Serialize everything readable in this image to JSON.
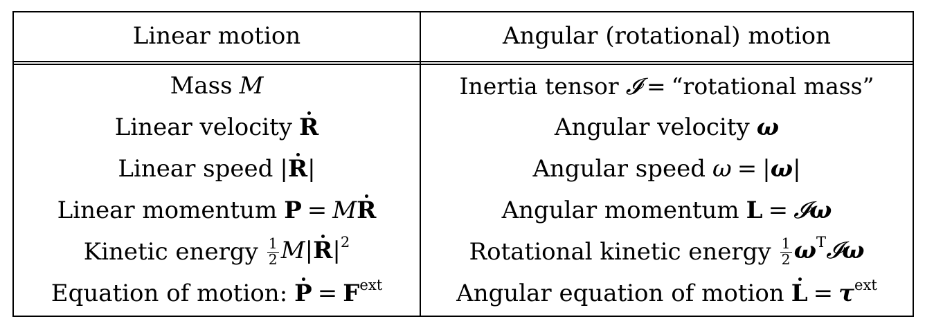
{
  "table": {
    "headers": {
      "linear": "Linear motion",
      "angular": "Angular (rotational) motion"
    },
    "rows": [
      {
        "linear": {
          "label": "Mass",
          "symbol": "M"
        },
        "angular": {
          "label": "Inertia tensor",
          "symbol": "𝓘",
          "equals": "=",
          "rhs": "“rotational mass”"
        }
      },
      {
        "linear": {
          "label": "Linear velocity",
          "symbol": "R"
        },
        "angular": {
          "label": "Angular velocity",
          "symbol": "ω"
        }
      },
      {
        "linear": {
          "label": "Linear speed",
          "bar_left": "|",
          "symbol": "R",
          "bar_right": "|"
        },
        "angular": {
          "label": "Angular speed",
          "symbol": "ω",
          "equals": "=",
          "bar_left": "|",
          "rhs_symbol": "ω",
          "bar_right": "|"
        }
      },
      {
        "linear": {
          "label": "Linear momentum",
          "symbol": "P",
          "equals": "=",
          "rhs_a": "M",
          "rhs_b": "R"
        },
        "angular": {
          "label": "Angular momentum",
          "symbol": "L",
          "equals": "=",
          "rhs_a": "𝓘",
          "rhs_b": "ω"
        }
      },
      {
        "linear": {
          "label": "Kinetic energy",
          "frac_num": "1",
          "frac_den": "2",
          "a": "M",
          "bar_left": "|",
          "b": "R",
          "bar_right": "|",
          "sup": "2"
        },
        "angular": {
          "label": "Rotational kinetic energy",
          "frac_num": "1",
          "frac_den": "2",
          "a": "ω",
          "sup": "T",
          "b": "𝓘",
          "c": "ω"
        }
      },
      {
        "linear": {
          "label": "Equation of motion:",
          "lhs": "P",
          "equals": "=",
          "rhs": "F",
          "sup": "ext"
        },
        "angular": {
          "label": "Angular equation of motion",
          "lhs": "L",
          "equals": "=",
          "rhs": "τ",
          "sup": "ext"
        }
      }
    ]
  }
}
